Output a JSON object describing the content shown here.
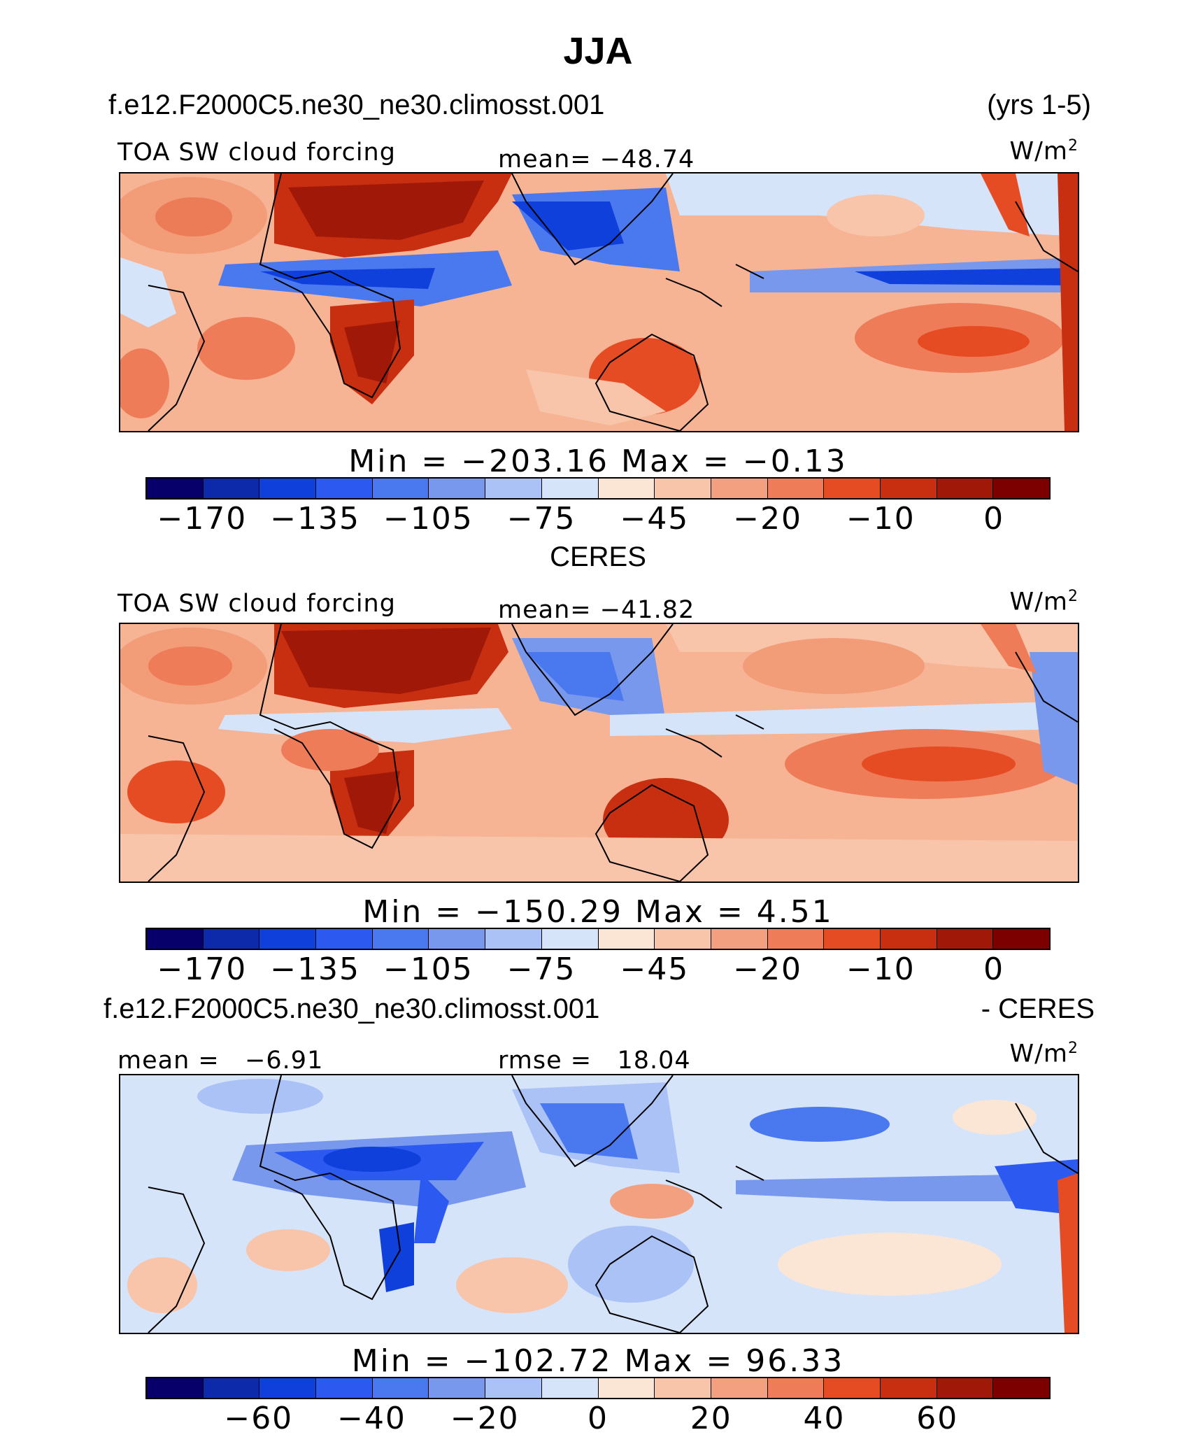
{
  "title": "JJA",
  "case_name": "f.e12.F2000C5.ne30_ne30.climosst.001",
  "years": "(yrs 1-5)",
  "units": "W/m",
  "units_sup": "2",
  "colors": {
    "abs_scale": [
      "#08006a",
      "#0c2aaa",
      "#1040dc",
      "#2c5af0",
      "#4a78ee",
      "#7898ee",
      "#aac2f6",
      "#d6e4fa",
      "#fbe6d6",
      "#f8c4aa",
      "#f3a080",
      "#ef7c58",
      "#e64c24",
      "#c82e10",
      "#a01808",
      "#7c0000"
    ],
    "diff_scale": [
      "#08006a",
      "#0c2aaa",
      "#1040dc",
      "#2c5af0",
      "#4a78ee",
      "#7898ee",
      "#aac2f6",
      "#d6e4fa",
      "#fbe6d6",
      "#f8c4aa",
      "#f3a080",
      "#ef7c58",
      "#e64c24",
      "#c82e10",
      "#a01808",
      "#7c0000"
    ]
  },
  "panels": [
    {
      "section_title": "",
      "left_label": "TOA SW cloud forcing",
      "center_label": "mean= −48.74",
      "min_label": "Min",
      "min_value": "−203.16",
      "max_label": "Max",
      "max_value": "−0.13",
      "ticks": [
        "−170",
        "−135",
        "−105",
        "−75",
        "−45",
        "−20",
        "−10",
        "0"
      ]
    },
    {
      "section_title": "CERES",
      "left_label": "TOA SW cloud forcing",
      "center_label": "mean= −41.82",
      "min_label": "Min",
      "min_value": "−150.29",
      "max_label": "Max",
      "max_value": "4.51",
      "ticks": [
        "−170",
        "−135",
        "−105",
        "−75",
        "−45",
        "−20",
        "−10",
        "0"
      ]
    },
    {
      "section_title": "- CERES",
      "left_label": "mean =   −6.91",
      "center_label": "rmse =   18.04",
      "min_label": "Min",
      "min_value": "−102.72",
      "max_label": "Max",
      "max_value": "96.33",
      "ticks": [
        "−60",
        "−40",
        "−20",
        "0",
        "20",
        "40",
        "60"
      ]
    }
  ]
}
